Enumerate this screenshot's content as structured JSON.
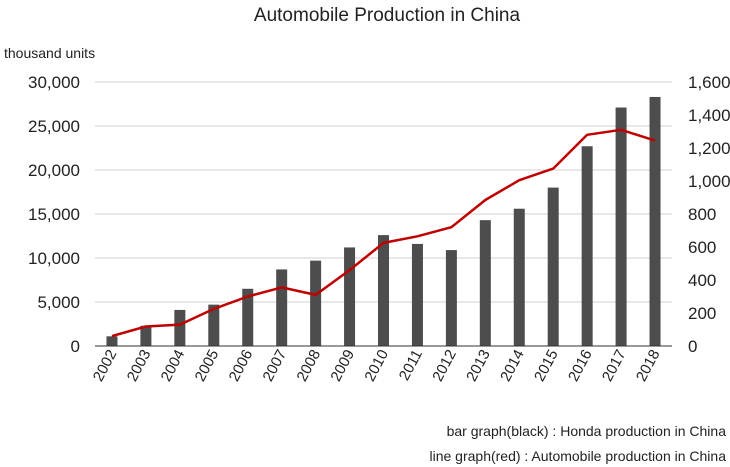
{
  "chart_data": {
    "type": "bar",
    "title": "Automobile Production in China",
    "y_unit_label": "thousand units",
    "categories": [
      "2002",
      "2003",
      "2004",
      "2005",
      "2006",
      "2007",
      "2008",
      "2009",
      "2010",
      "2011",
      "2012",
      "2013",
      "2014",
      "2015",
      "2016",
      "2017",
      "2018"
    ],
    "series": [
      {
        "type": "bar",
        "axis": "left",
        "color": "#4d4d4d",
        "values": [
          1100,
          2300,
          4100,
          4700,
          6500,
          8700,
          9700,
          11200,
          12600,
          11600,
          10900,
          14300,
          15600,
          18000,
          22700,
          27100,
          28300
        ]
      },
      {
        "type": "line",
        "axis": "right",
        "color": "#c00000",
        "values": [
          60,
          118,
          130,
          225,
          300,
          355,
          310,
          460,
          625,
          665,
          720,
          885,
          1005,
          1075,
          1280,
          1310,
          1245
        ]
      }
    ],
    "y_left": {
      "min": 0,
      "max": 30000,
      "ticks": [
        "0",
        "5,000",
        "10,000",
        "15,000",
        "20,000",
        "25,000",
        "30,000"
      ]
    },
    "y_right": {
      "min": 0,
      "max": 1600,
      "ticks": [
        "0",
        "200",
        "400",
        "600",
        "800",
        "1,000",
        "1,200",
        "1,400",
        "1,600"
      ]
    },
    "grid": true,
    "notes": [
      "bar graph(black) : Honda production in China",
      "line graph(red) : Automobile production in China"
    ]
  }
}
